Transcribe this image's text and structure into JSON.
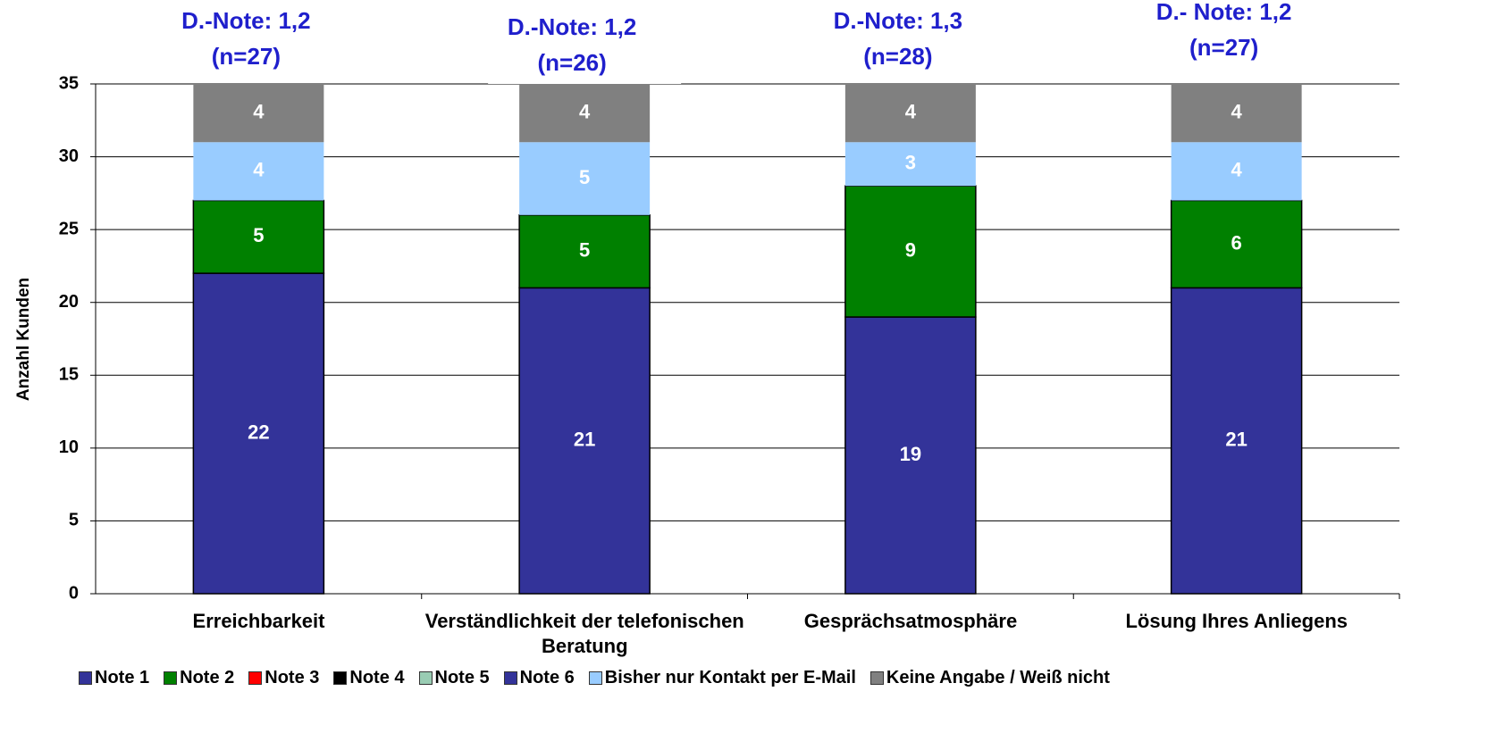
{
  "chart_data": {
    "type": "stacked_bar",
    "y_label": "Anzahl Kunden",
    "categories": [
      "Erreichbarkeit",
      "Verständlichkeit der telefonischen Beratung",
      "Gesprächsatmosphäre",
      "Lösung Ihres Anliegens"
    ],
    "annotations": [
      {
        "note": "D.-Note: 1,2",
        "n": "(n=27)"
      },
      {
        "note": "D.-Note: 1,2",
        "n": "(n=26)"
      },
      {
        "note": "D.-Note: 1,3",
        "n": "(n=28)"
      },
      {
        "note": "D.- Note: 1,2",
        "n": "(n=27)"
      }
    ],
    "series": [
      {
        "name": "Note 1",
        "color": "#333399",
        "values": [
          22,
          21,
          19,
          21
        ]
      },
      {
        "name": "Note 2",
        "color": "#008000",
        "values": [
          5,
          5,
          9,
          6
        ]
      },
      {
        "name": "Note 3",
        "color": "#ff0000",
        "values": [
          0,
          0,
          0,
          0
        ]
      },
      {
        "name": "Note 4",
        "color": "#000000",
        "values": [
          0,
          0,
          0,
          0
        ]
      },
      {
        "name": "Note 5",
        "color": "#99ccb3",
        "values": [
          0,
          0,
          0,
          0
        ]
      },
      {
        "name": "Note 6",
        "color": "#333399",
        "values": [
          0,
          0,
          0,
          0
        ]
      },
      {
        "name": "Bisher nur Kontakt per E-Mail",
        "color": "#99ccff",
        "values": [
          4,
          5,
          3,
          4
        ]
      },
      {
        "name": "Keine Angabe / Weiß nicht",
        "color": "#808080",
        "values": [
          4,
          4,
          4,
          4
        ]
      }
    ],
    "ylim": [
      0,
      35
    ],
    "yticks": [
      0,
      5,
      10,
      15,
      20,
      25,
      30,
      35
    ],
    "grid": true
  }
}
